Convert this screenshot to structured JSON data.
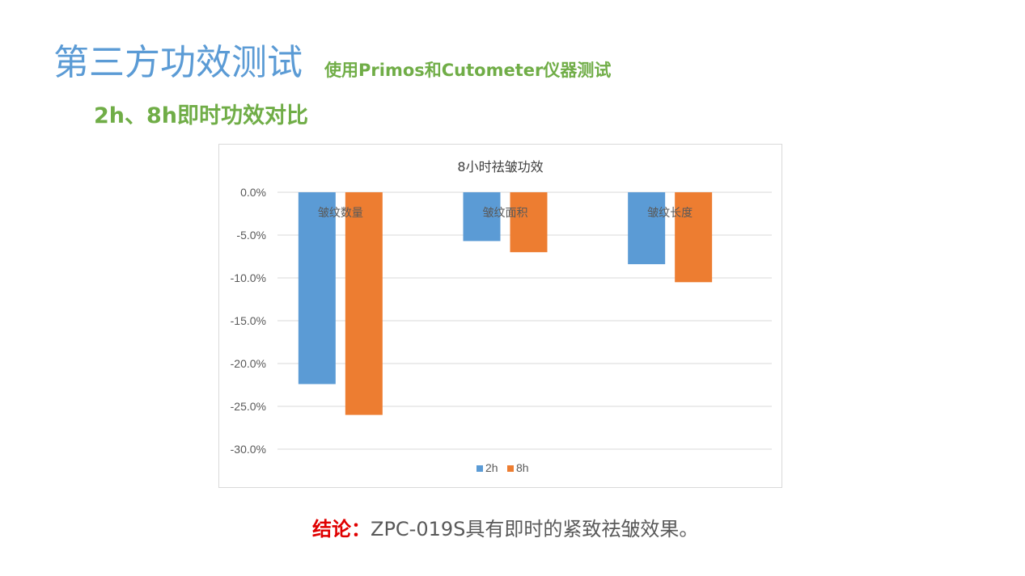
{
  "header": {
    "title": "第三方功效测试",
    "subtitle": "使用Primos和Cutometer仪器测试",
    "section": "2h、8h即时功效对比"
  },
  "conclusion": {
    "label": "结论：",
    "text": "ZPC-019S具有即时的紧致祛皱效果。"
  },
  "colors": {
    "2h": "#5b9bd5",
    "8h": "#ed7d31",
    "title_blue": "#5b9bd5",
    "green": "#70ad47",
    "red": "#e00000"
  },
  "chart_data": {
    "type": "bar",
    "title": "8小时祛皱功效",
    "categories": [
      "皱纹数量",
      "皱纹面积",
      "皱纹长度"
    ],
    "series": [
      {
        "name": "2h",
        "color": "#5b9bd5",
        "values": [
          -22.4,
          -5.7,
          -8.4
        ]
      },
      {
        "name": "8h",
        "color": "#ed7d31",
        "values": [
          -26.0,
          -7.0,
          -10.5
        ]
      }
    ],
    "ylim": [
      -30,
      0
    ],
    "yticks": [
      0,
      -5,
      -10,
      -15,
      -20,
      -25,
      -30
    ],
    "ytick_labels": [
      "0.0%",
      "-5.0%",
      "-10.0%",
      "-15.0%",
      "-20.0%",
      "-25.0%",
      "-30.0%"
    ],
    "grid": true,
    "legend": "bottom"
  }
}
